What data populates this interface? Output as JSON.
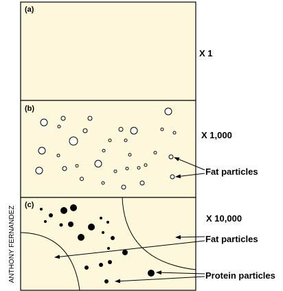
{
  "panels": [
    {
      "label": "(a)",
      "magnification": "X 1"
    },
    {
      "label": "(b)",
      "magnification": "X 1,000"
    },
    {
      "label": "(c)",
      "magnification": "X 10,000"
    }
  ],
  "annotations": {
    "fat_particles_b": "Fat particles",
    "fat_particles_c": "Fat particles",
    "protein_particles": "Protein particles"
  },
  "credit": "ANTHONY FERNANDEZ"
}
